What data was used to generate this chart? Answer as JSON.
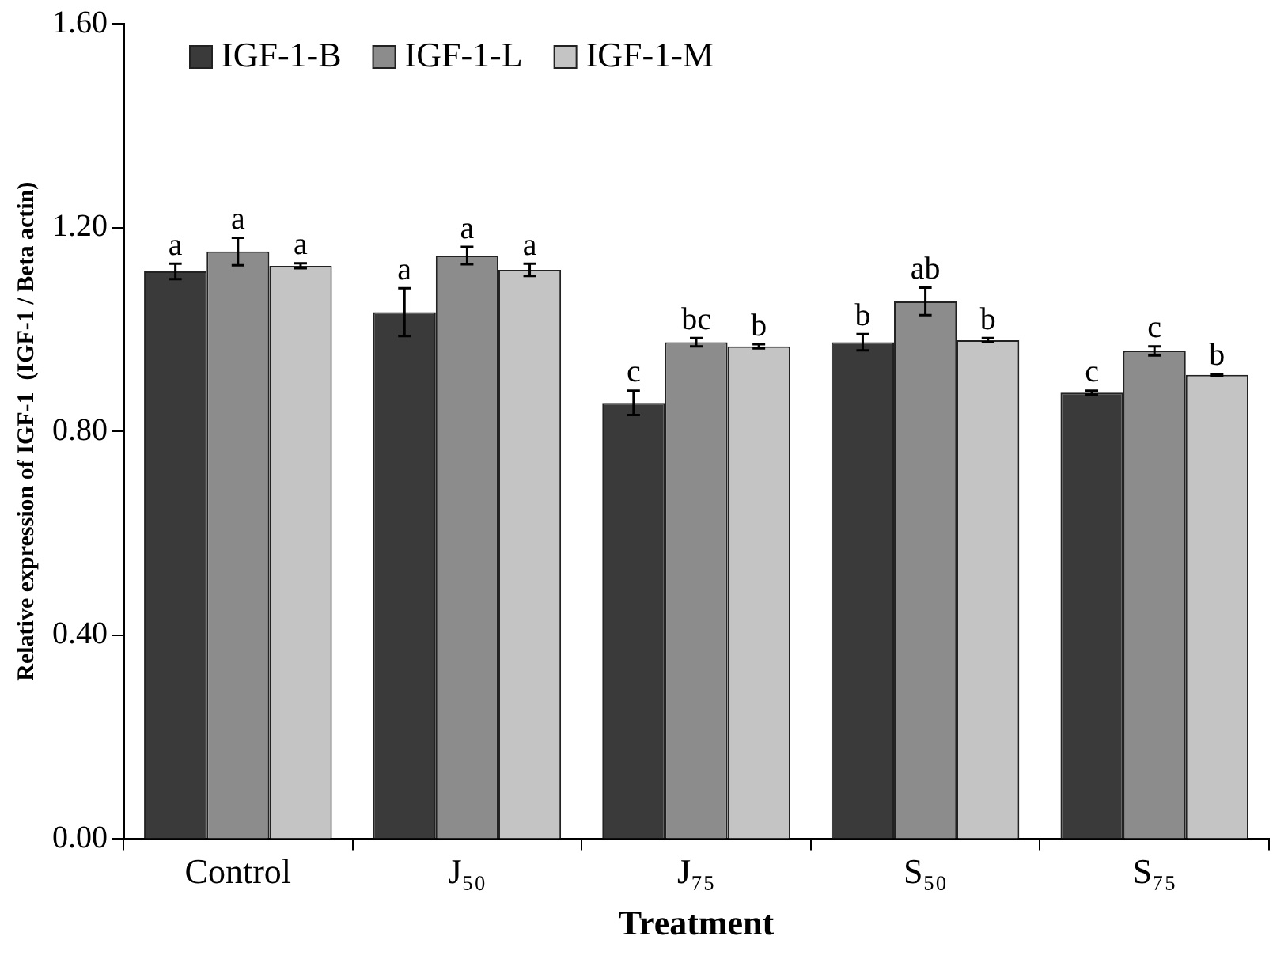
{
  "chart_data": {
    "type": "bar",
    "xlabel": "Treatment",
    "ylabel": "Relative expression of IGF-1  (IGF-1 / Beta actin)",
    "categories": [
      "Control",
      "J₅₀",
      "J₇₅",
      "S₅₀",
      "S₇₅"
    ],
    "series": [
      {
        "name": "IGF-1-B",
        "color": "#3a3a3a",
        "values": [
          1.114,
          1.034,
          0.856,
          0.975,
          0.876
        ],
        "errors": [
          0.015,
          0.047,
          0.024,
          0.016,
          0.004
        ],
        "value_labels": [
          "a",
          "a",
          "c",
          "b",
          "c"
        ]
      },
      {
        "name": "IGF-1-L",
        "color": "#8c8c8c",
        "values": [
          1.153,
          1.145,
          0.975,
          1.055,
          0.958
        ],
        "errors": [
          0.027,
          0.017,
          0.008,
          0.027,
          0.009
        ],
        "value_labels": [
          "a",
          "a",
          "bc",
          "ab",
          "c"
        ]
      },
      {
        "name": "IGF-1-M",
        "color": "#c4c4c4",
        "values": [
          1.125,
          1.117,
          0.967,
          0.979,
          0.911
        ],
        "errors": [
          0.005,
          0.012,
          0.004,
          0.004,
          0.002
        ],
        "value_labels": [
          "a",
          "a",
          "b",
          "b",
          "b"
        ]
      }
    ],
    "ylim": [
      0,
      1.6
    ],
    "yticks": [
      {
        "value": 0,
        "label": "0.00"
      },
      {
        "value": 0.4,
        "label": "0.40"
      },
      {
        "value": 0.8,
        "label": "0.80"
      },
      {
        "value": 1.2,
        "label": "1.20"
      },
      {
        "value": 1.6,
        "label": "1.60"
      }
    ],
    "grid": false,
    "legend": "top left"
  }
}
